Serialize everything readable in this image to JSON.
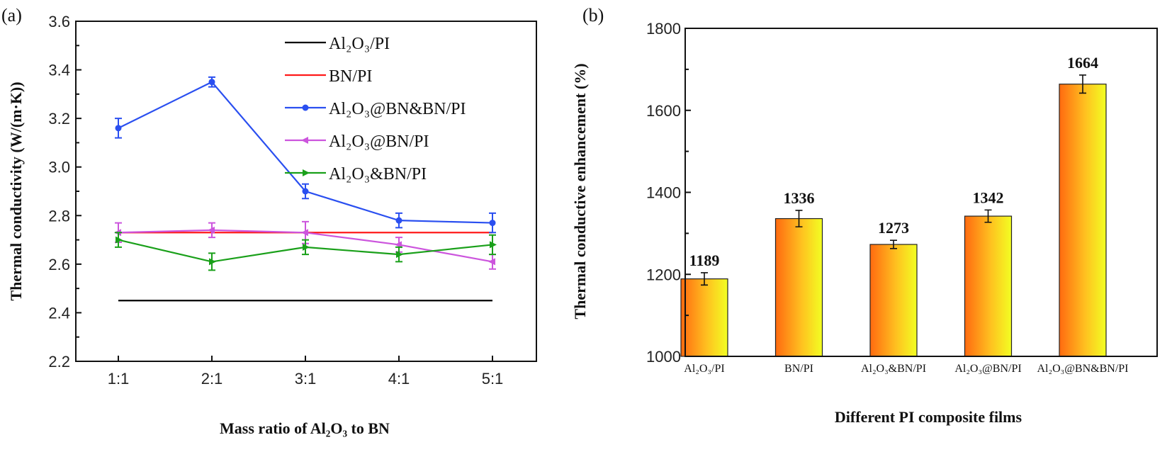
{
  "chart_data": [
    {
      "panel_label": "(a)",
      "type": "line",
      "xlabel": "Mass ratio of Al₂O₃ to BN",
      "ylabel": "Thermal conductivity (W/(m·K))",
      "categories": [
        "1:1",
        "2:1",
        "3:1",
        "4:1",
        "5:1"
      ],
      "ylim": [
        2.2,
        3.6
      ],
      "yticks": [
        "2.2",
        "2.4",
        "2.6",
        "2.8",
        "3.0",
        "3.2",
        "3.4",
        "3.6"
      ],
      "legend_placement": "top-right",
      "grid": false,
      "series": [
        {
          "name": "Al₂O₃/PI",
          "color": "#000000",
          "marker": "none",
          "values": [
            2.45,
            2.45,
            2.45,
            2.45,
            2.45
          ],
          "errors": null
        },
        {
          "name": "BN/PI",
          "color": "#ff1a1a",
          "marker": "none",
          "values": [
            2.73,
            2.73,
            2.73,
            2.73,
            2.73
          ],
          "errors": null
        },
        {
          "name": "Al₂O₃@BN&BN/PI",
          "color": "#2a4ff0",
          "marker": "circle",
          "values": [
            3.16,
            3.35,
            2.9,
            2.78,
            2.77
          ],
          "errors": [
            0.04,
            0.02,
            0.03,
            0.03,
            0.04
          ]
        },
        {
          "name": "Al₂O₃@BN/PI",
          "color": "#cc55dd",
          "marker": "triangle-left",
          "values": [
            2.73,
            2.74,
            2.73,
            2.68,
            2.61
          ],
          "errors": [
            0.04,
            0.03,
            0.045,
            0.03,
            0.03
          ]
        },
        {
          "name": "Al₂O₃&BN/PI",
          "color": "#1aa01a",
          "marker": "triangle-right",
          "values": [
            2.7,
            2.61,
            2.67,
            2.64,
            2.68
          ],
          "errors": [
            0.03,
            0.035,
            0.03,
            0.03,
            0.04
          ]
        }
      ]
    },
    {
      "panel_label": "(b)",
      "type": "bar",
      "xlabel": "Different PI composite films",
      "ylabel": "Thermal conductive enhancement (%)",
      "categories": [
        "Al₂O₃/PI",
        "BN/PI",
        "Al₂O₃&BN/PI",
        "Al₂O₃@BN/PI",
        "Al₂O₃@BN&BN/PI"
      ],
      "values": [
        1189,
        1336,
        1273,
        1342,
        1664
      ],
      "data_labels": [
        "1189",
        "1336",
        "1273",
        "1342",
        "1664"
      ],
      "errors": [
        15,
        20,
        10,
        15,
        22
      ],
      "ylim": [
        1000,
        1800
      ],
      "yticks": [
        "1000",
        "1200",
        "1400",
        "1600",
        "1800"
      ],
      "bar_gradient": [
        "#ff6a10",
        "#f2ff22"
      ],
      "grid": false
    }
  ]
}
